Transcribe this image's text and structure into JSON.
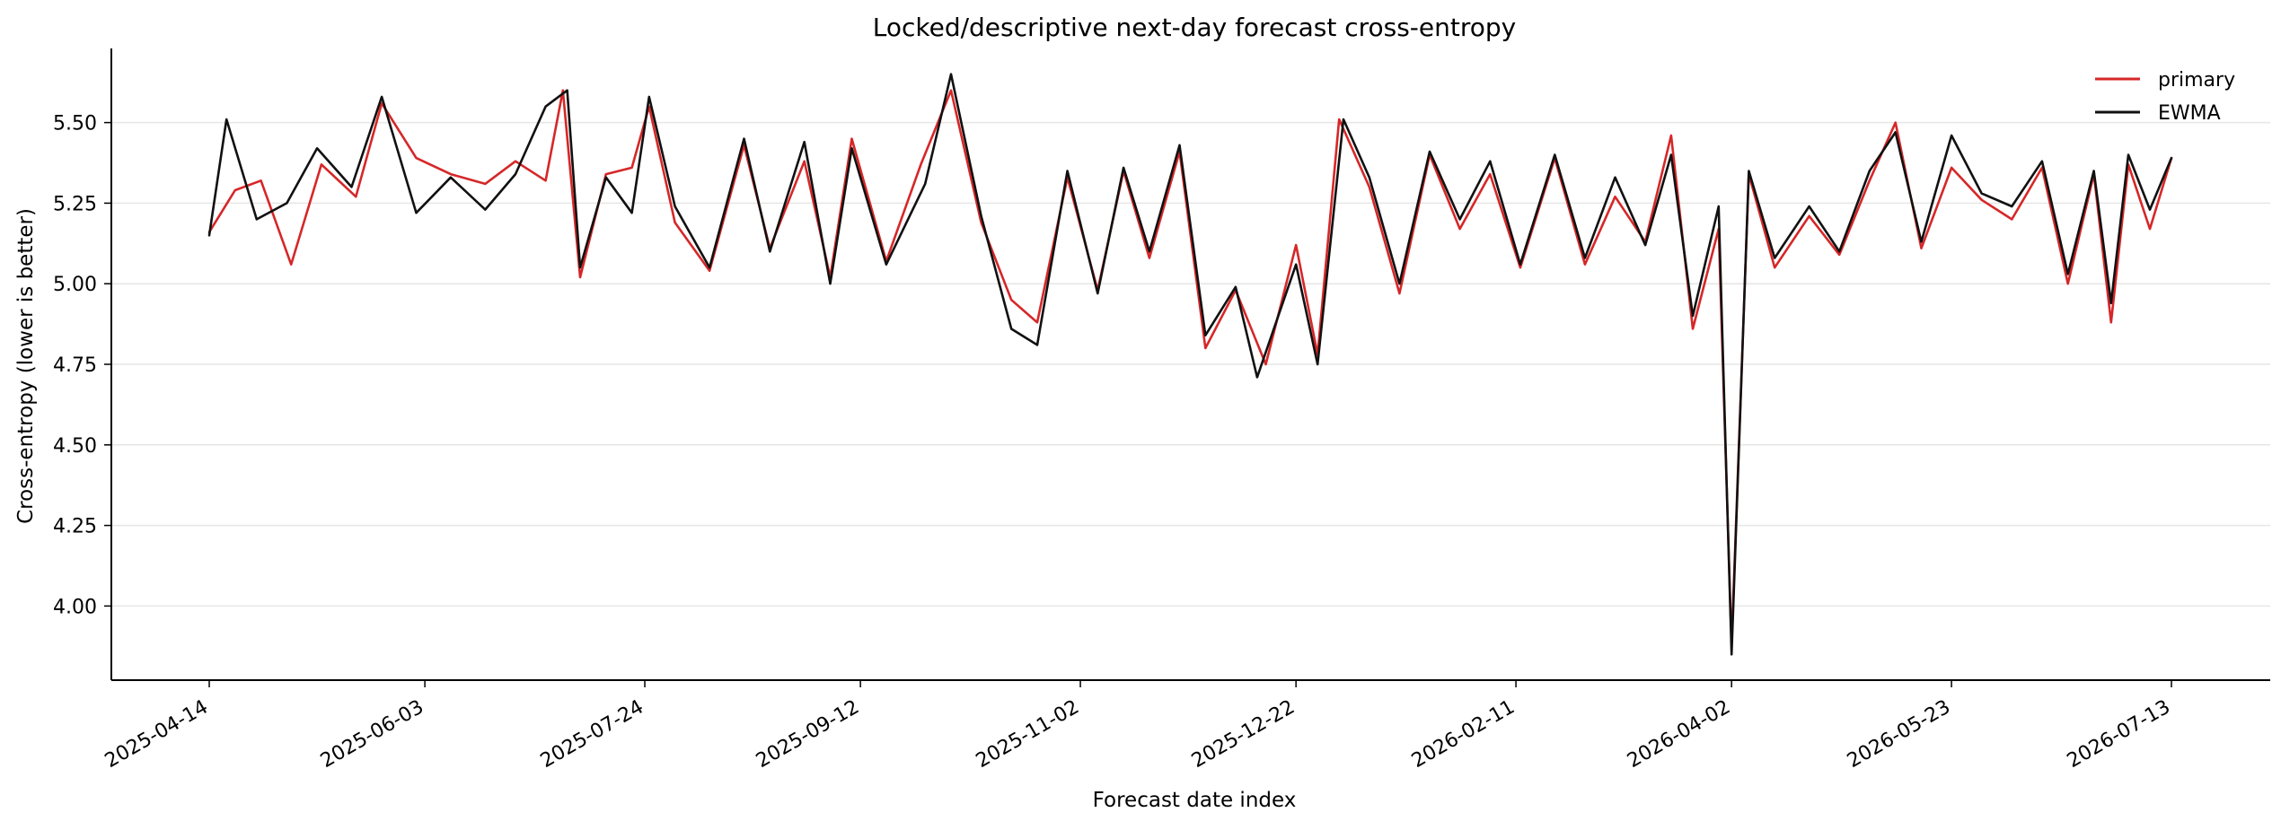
{
  "chart_data": {
    "type": "line",
    "title": "Locked/descriptive next-day forecast cross-entropy",
    "xlabel": "Forecast date index",
    "ylabel": "Cross-entropy (lower is better)",
    "x_range": [
      "2025-04-14",
      "2026-07-13"
    ],
    "ylim": [
      3.77,
      5.73
    ],
    "yticks": [
      4.0,
      4.25,
      4.5,
      4.75,
      5.0,
      5.25,
      5.5
    ],
    "ytick_labels": [
      "4.00",
      "4.25",
      "4.50",
      "4.75",
      "5.00",
      "5.25",
      "5.50"
    ],
    "xticks": [
      "2025-04-14",
      "2025-06-03",
      "2025-07-24",
      "2025-09-12",
      "2025-11-02",
      "2025-12-22",
      "2026-02-11",
      "2026-04-02",
      "2026-05-23",
      "2026-07-13"
    ],
    "grid": "y",
    "legend_position": "top-right",
    "colors": {
      "primary": "#d62728",
      "EWMA": "#111111",
      "grid": "#e6e6e6"
    },
    "series": [
      {
        "name": "primary",
        "points": [
          [
            "2025-04-14",
            5.16
          ],
          [
            "2025-04-20",
            5.29
          ],
          [
            "2025-04-26",
            5.32
          ],
          [
            "2025-05-03",
            5.06
          ],
          [
            "2025-05-10",
            5.37
          ],
          [
            "2025-05-18",
            5.27
          ],
          [
            "2025-05-24",
            5.56
          ],
          [
            "2025-06-01",
            5.39
          ],
          [
            "2025-06-09",
            5.34
          ],
          [
            "2025-06-17",
            5.31
          ],
          [
            "2025-06-24",
            5.38
          ],
          [
            "2025-07-01",
            5.32
          ],
          [
            "2025-07-05",
            5.6
          ],
          [
            "2025-07-09",
            5.02
          ],
          [
            "2025-07-15",
            5.34
          ],
          [
            "2025-07-21",
            5.36
          ],
          [
            "2025-07-25",
            5.55
          ],
          [
            "2025-07-31",
            5.19
          ],
          [
            "2025-08-08",
            5.04
          ],
          [
            "2025-08-16",
            5.43
          ],
          [
            "2025-08-22",
            5.11
          ],
          [
            "2025-08-30",
            5.38
          ],
          [
            "2025-09-05",
            5.02
          ],
          [
            "2025-09-10",
            5.45
          ],
          [
            "2025-09-18",
            5.07
          ],
          [
            "2025-09-26",
            5.37
          ],
          [
            "2025-10-03",
            5.6
          ],
          [
            "2025-10-10",
            5.19
          ],
          [
            "2025-10-17",
            4.95
          ],
          [
            "2025-10-23",
            4.88
          ],
          [
            "2025-10-30",
            5.33
          ],
          [
            "2025-11-06",
            4.98
          ],
          [
            "2025-11-12",
            5.35
          ],
          [
            "2025-11-18",
            5.08
          ],
          [
            "2025-11-25",
            5.41
          ],
          [
            "2025-12-01",
            4.8
          ],
          [
            "2025-12-08",
            4.98
          ],
          [
            "2025-12-15",
            4.75
          ],
          [
            "2025-12-22",
            5.12
          ],
          [
            "2025-12-27",
            4.78
          ],
          [
            "2026-01-01",
            5.51
          ],
          [
            "2026-01-08",
            5.3
          ],
          [
            "2026-01-15",
            4.97
          ],
          [
            "2026-01-22",
            5.4
          ],
          [
            "2026-01-29",
            5.17
          ],
          [
            "2026-02-05",
            5.34
          ],
          [
            "2026-02-12",
            5.05
          ],
          [
            "2026-02-20",
            5.39
          ],
          [
            "2026-02-27",
            5.06
          ],
          [
            "2026-03-06",
            5.27
          ],
          [
            "2026-03-13",
            5.13
          ],
          [
            "2026-03-19",
            5.46
          ],
          [
            "2026-03-24",
            4.86
          ],
          [
            "2026-03-30",
            5.17
          ],
          [
            "2026-04-02",
            3.88
          ],
          [
            "2026-04-06",
            5.34
          ],
          [
            "2026-04-12",
            5.05
          ],
          [
            "2026-04-20",
            5.21
          ],
          [
            "2026-04-27",
            5.09
          ],
          [
            "2026-05-04",
            5.32
          ],
          [
            "2026-05-10",
            5.5
          ],
          [
            "2026-05-16",
            5.11
          ],
          [
            "2026-05-23",
            5.36
          ],
          [
            "2026-05-30",
            5.26
          ],
          [
            "2026-06-06",
            5.2
          ],
          [
            "2026-06-13",
            5.36
          ],
          [
            "2026-06-19",
            5.0
          ],
          [
            "2026-06-25",
            5.34
          ],
          [
            "2026-06-29",
            4.88
          ],
          [
            "2026-07-03",
            5.37
          ],
          [
            "2026-07-08",
            5.17
          ],
          [
            "2026-07-13",
            5.39
          ]
        ]
      },
      {
        "name": "EWMA",
        "points": [
          [
            "2025-04-14",
            5.15
          ],
          [
            "2025-04-18",
            5.51
          ],
          [
            "2025-04-25",
            5.2
          ],
          [
            "2025-05-02",
            5.25
          ],
          [
            "2025-05-09",
            5.42
          ],
          [
            "2025-05-17",
            5.3
          ],
          [
            "2025-05-24",
            5.58
          ],
          [
            "2025-06-01",
            5.22
          ],
          [
            "2025-06-09",
            5.33
          ],
          [
            "2025-06-17",
            5.23
          ],
          [
            "2025-06-24",
            5.34
          ],
          [
            "2025-07-01",
            5.55
          ],
          [
            "2025-07-06",
            5.6
          ],
          [
            "2025-07-09",
            5.05
          ],
          [
            "2025-07-15",
            5.33
          ],
          [
            "2025-07-21",
            5.22
          ],
          [
            "2025-07-25",
            5.58
          ],
          [
            "2025-07-31",
            5.24
          ],
          [
            "2025-08-08",
            5.05
          ],
          [
            "2025-08-16",
            5.45
          ],
          [
            "2025-08-22",
            5.1
          ],
          [
            "2025-08-30",
            5.44
          ],
          [
            "2025-09-05",
            5.0
          ],
          [
            "2025-09-10",
            5.42
          ],
          [
            "2025-09-18",
            5.06
          ],
          [
            "2025-09-27",
            5.31
          ],
          [
            "2025-10-03",
            5.65
          ],
          [
            "2025-10-10",
            5.21
          ],
          [
            "2025-10-17",
            4.86
          ],
          [
            "2025-10-23",
            4.81
          ],
          [
            "2025-10-30",
            5.35
          ],
          [
            "2025-11-06",
            4.97
          ],
          [
            "2025-11-12",
            5.36
          ],
          [
            "2025-11-18",
            5.1
          ],
          [
            "2025-11-25",
            5.43
          ],
          [
            "2025-12-01",
            4.84
          ],
          [
            "2025-12-08",
            4.99
          ],
          [
            "2025-12-13",
            4.71
          ],
          [
            "2025-12-22",
            5.06
          ],
          [
            "2025-12-27",
            4.75
          ],
          [
            "2026-01-02",
            5.51
          ],
          [
            "2026-01-08",
            5.33
          ],
          [
            "2026-01-15",
            5.0
          ],
          [
            "2026-01-22",
            5.41
          ],
          [
            "2026-01-29",
            5.2
          ],
          [
            "2026-02-05",
            5.38
          ],
          [
            "2026-02-12",
            5.06
          ],
          [
            "2026-02-20",
            5.4
          ],
          [
            "2026-02-27",
            5.08
          ],
          [
            "2026-03-06",
            5.33
          ],
          [
            "2026-03-13",
            5.12
          ],
          [
            "2026-03-19",
            5.4
          ],
          [
            "2026-03-24",
            4.9
          ],
          [
            "2026-03-30",
            5.24
          ],
          [
            "2026-04-02",
            3.85
          ],
          [
            "2026-04-06",
            5.35
          ],
          [
            "2026-04-12",
            5.08
          ],
          [
            "2026-04-20",
            5.24
          ],
          [
            "2026-04-27",
            5.1
          ],
          [
            "2026-05-04",
            5.35
          ],
          [
            "2026-05-10",
            5.47
          ],
          [
            "2026-05-16",
            5.13
          ],
          [
            "2026-05-23",
            5.46
          ],
          [
            "2026-05-30",
            5.28
          ],
          [
            "2026-06-06",
            5.24
          ],
          [
            "2026-06-13",
            5.38
          ],
          [
            "2026-06-19",
            5.03
          ],
          [
            "2026-06-25",
            5.35
          ],
          [
            "2026-06-29",
            4.94
          ],
          [
            "2026-07-03",
            5.4
          ],
          [
            "2026-07-08",
            5.23
          ],
          [
            "2026-07-13",
            5.39
          ]
        ]
      }
    ]
  }
}
